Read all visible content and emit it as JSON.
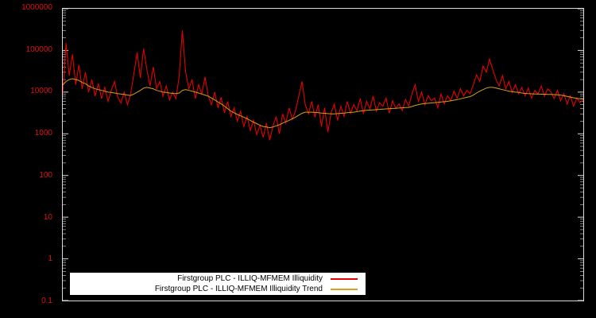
{
  "chart": {
    "background_color": "#000000",
    "axis_color": "#d9d9d9",
    "tick_label_color": "#dd1111",
    "y_ticks": [
      "1000000",
      "100000",
      "10000",
      "1000",
      "100",
      "10",
      "1",
      "0.1"
    ],
    "legend": {
      "items": [
        {
          "label": "Firstgroup PLC - ILLIQ-MFMEM Illiquidity",
          "color": "#e60000"
        },
        {
          "label": "Firstgroup PLC - ILLIQ-MFMEM Illiquidity Trend",
          "color": "#d4a017"
        }
      ]
    }
  },
  "chart_data": {
    "type": "line",
    "title": "",
    "xlabel": "",
    "ylabel": "",
    "yscale": "log",
    "ylim": [
      0.1,
      1000000
    ],
    "grid": false,
    "legend_position": "bottom-center",
    "series": [
      {
        "name": "Firstgroup PLC - ILLIQ-MFMEM Illiquidity",
        "color": "#e60000",
        "values": [
          9000,
          150000,
          25000,
          80000,
          15000,
          45000,
          12000,
          30000,
          10000,
          20000,
          8000,
          16000,
          7000,
          13000,
          6000,
          11000,
          18000,
          7500,
          5500,
          10000,
          5000,
          9000,
          28000,
          90000,
          22000,
          110000,
          35000,
          14000,
          40000,
          12000,
          18000,
          8000,
          14000,
          6500,
          10000,
          7000,
          24000,
          300000,
          30000,
          12000,
          20000,
          7000,
          15000,
          9000,
          23000,
          8000,
          5000,
          10000,
          4200,
          7500,
          3200,
          6000,
          2600,
          4200,
          2000,
          3500,
          1500,
          2600,
          1200,
          2100,
          950,
          1600,
          820,
          1800,
          700,
          1500,
          2600,
          1000,
          3000,
          1800,
          4200,
          2200,
          3600,
          8000,
          18000,
          5000,
          3000,
          6000,
          2500,
          5000,
          1500,
          4200,
          1100,
          3200,
          5200,
          2100,
          4600,
          2600,
          6000,
          3100,
          5000,
          3600,
          7000,
          3000,
          6000,
          4000,
          8000,
          3500,
          5600,
          4600,
          7200,
          3100,
          6200,
          4100,
          5200,
          3600,
          6600,
          4600,
          9000,
          15000,
          6000,
          10000,
          5000,
          8200,
          6200,
          7200,
          4200,
          9000,
          5200,
          8200,
          6200,
          10500,
          7200,
          12000,
          8200,
          11000,
          9200,
          15000,
          26000,
          18000,
          42000,
          30000,
          62000,
          35000,
          20000,
          14000,
          25000,
          12000,
          18000,
          10000,
          15000,
          9200,
          13000,
          8200,
          12500,
          7200,
          11000,
          9000,
          14000,
          8000,
          12000,
          10000,
          7000,
          11000,
          6200,
          9200,
          5200,
          8200,
          4600,
          7200,
          5600,
          6600
        ]
      },
      {
        "name": "Firstgroup PLC - ILLIQ-MFMEM Illiquidity Trend",
        "color": "#d4a017",
        "values": [
          15000,
          18000,
          20000,
          21000,
          20000,
          19000,
          17000,
          16000,
          14000,
          13000,
          12000,
          11500,
          11000,
          10500,
          10000,
          9800,
          9500,
          9200,
          9000,
          8800,
          8500,
          8300,
          9000,
          10000,
          11000,
          12500,
          13000,
          12500,
          12000,
          11000,
          10500,
          10000,
          9800,
          9500,
          9300,
          9200,
          9500,
          11000,
          11500,
          11000,
          10500,
          10000,
          9500,
          9000,
          8500,
          8000,
          7200,
          6500,
          5800,
          5200,
          4600,
          4000,
          3500,
          3200,
          2900,
          2700,
          2500,
          2300,
          2100,
          1900,
          1750,
          1600,
          1500,
          1450,
          1400,
          1450,
          1550,
          1650,
          1800,
          1950,
          2100,
          2300,
          2500,
          2800,
          3100,
          3300,
          3300,
          3300,
          3250,
          3200,
          3150,
          3100,
          3050,
          3000,
          3000,
          3050,
          3100,
          3150,
          3200,
          3250,
          3300,
          3400,
          3500,
          3600,
          3650,
          3700,
          3750,
          3800,
          3850,
          3900,
          3950,
          4000,
          4050,
          4100,
          4150,
          4200,
          4250,
          4300,
          4500,
          4800,
          5000,
          5200,
          5300,
          5400,
          5500,
          5600,
          5700,
          5800,
          5900,
          6000,
          6200,
          6400,
          6600,
          6900,
          7200,
          7500,
          7800,
          8500,
          9500,
          10500,
          11500,
          12500,
          13000,
          13000,
          12500,
          12000,
          11500,
          11000,
          10500,
          10200,
          10000,
          9800,
          9500,
          9300,
          9200,
          9100,
          9000,
          9000,
          8900,
          8900,
          8800,
          8800,
          8700,
          8600,
          8500,
          8200,
          7900,
          7600,
          7300,
          7100,
          6900,
          6800
        ]
      }
    ]
  }
}
